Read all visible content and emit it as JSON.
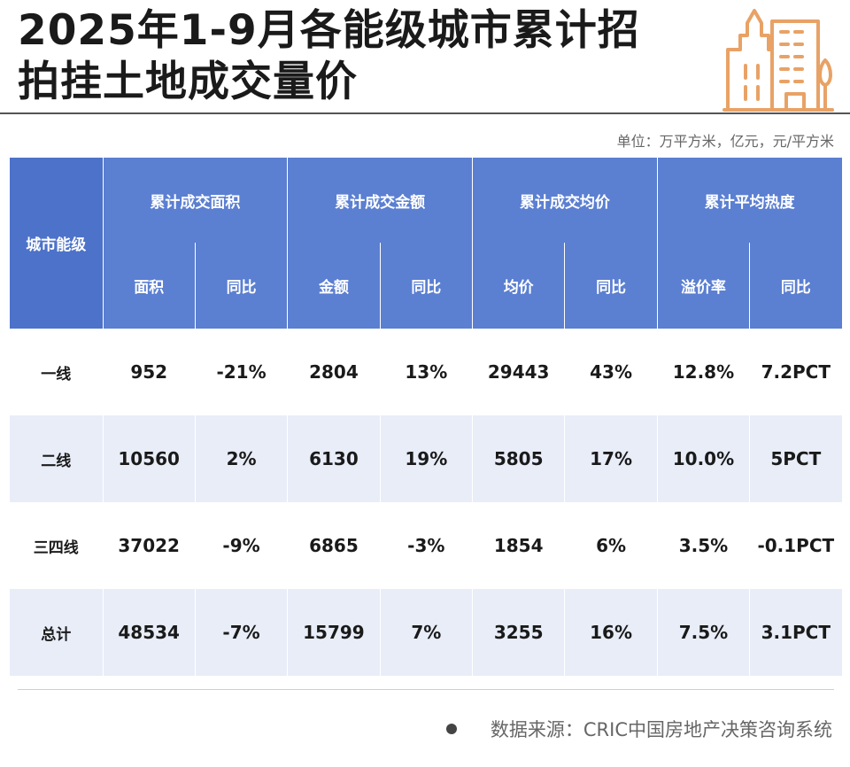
{
  "title": {
    "line1": "2025年1-9月各能级城市累计招",
    "line2": "拍挂土地成交量价"
  },
  "unit_note": "单位：万平方米，亿元，元/平方米",
  "table": {
    "row_header": "城市能级",
    "groups": [
      "累计成交面积",
      "累计成交金额",
      "累计成交均价",
      "累计平均热度"
    ],
    "subheaders": [
      "面积",
      "同比",
      "金额",
      "同比",
      "均价",
      "同比",
      "溢价率",
      "同比"
    ],
    "rows": [
      {
        "label": "一线",
        "cells": [
          "952",
          "-21%",
          "2804",
          "13%",
          "29443",
          "43%",
          "12.8%",
          "7.2PCT"
        ]
      },
      {
        "label": "二线",
        "cells": [
          "10560",
          "2%",
          "6130",
          "19%",
          "5805",
          "17%",
          "10.0%",
          "5PCT"
        ]
      },
      {
        "label": "三四线",
        "cells": [
          "37022",
          "-9%",
          "6865",
          "-3%",
          "1854",
          "6%",
          "3.5%",
          "-0.1PCT"
        ]
      },
      {
        "label": "总计",
        "cells": [
          "48534",
          "-7%",
          "15799",
          "7%",
          "3255",
          "16%",
          "7.5%",
          "3.1PCT"
        ]
      }
    ]
  },
  "source": "数据来源：CRIC中国房地产决策咨询系统",
  "colors": {
    "header_bg": "#5b7fd1",
    "alt_row_bg": "#e8edf8",
    "icon_orange": "#e8a266"
  },
  "icons": {
    "header_decoration": "buildings-icon"
  }
}
